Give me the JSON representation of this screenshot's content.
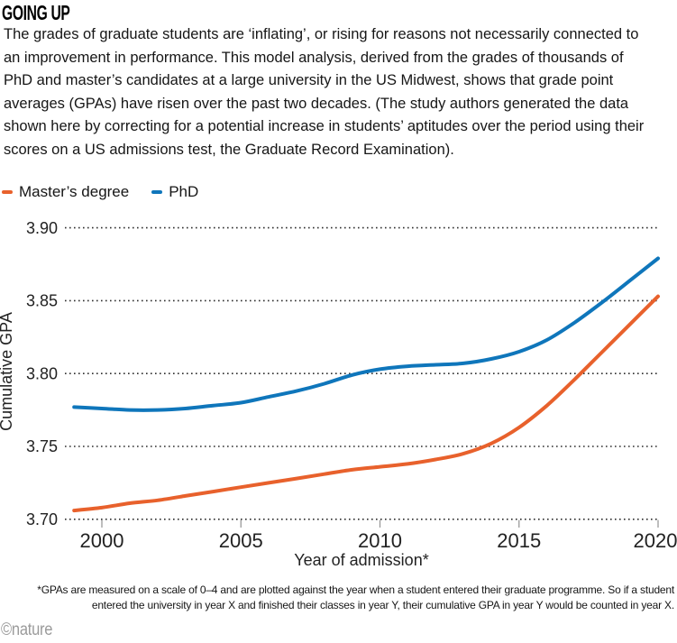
{
  "page": {
    "title": "GOING UP",
    "intro": "The grades of graduate students are ‘inflating’, or rising for reasons not necessarily connected to an improvement in performance. This model analysis, derived from the grades of thousands of PhD and master’s candidates at a large university in the US Midwest, shows that grade point averages (GPAs) have risen over the past two decades. (The study authors generated the data shown here by correcting for a potential increase in students’ aptitudes over the period using their scores on a US admissions test, the Graduate Record Examination).",
    "footnote": "*GPAs are measured on a scale of 0–4 and are plotted against the year when a student entered their graduate programme. So if a student entered the university in year X and finished their classes in year Y, their cumulative GPA in year Y would be counted in year X.",
    "credit": "©nature"
  },
  "legend": [
    {
      "label": "Master’s degree",
      "color": "#E8612C"
    },
    {
      "label": "PhD",
      "color": "#0F76BB"
    }
  ],
  "chart_data": {
    "type": "line",
    "title": "GOING UP",
    "xlabel": "Year of admission*",
    "ylabel": "Cumulative GPA",
    "x": [
      1999,
      2000,
      2001,
      2002,
      2003,
      2004,
      2005,
      2006,
      2007,
      2008,
      2009,
      2010,
      2011,
      2012,
      2013,
      2014,
      2015,
      2016,
      2017,
      2018,
      2019,
      2020
    ],
    "series": [
      {
        "name": "Master’s degree",
        "color": "#E8612C",
        "values": [
          3.706,
          3.708,
          3.711,
          3.713,
          3.716,
          3.719,
          3.722,
          3.725,
          3.728,
          3.731,
          3.734,
          3.736,
          3.738,
          3.741,
          3.745,
          3.752,
          3.763,
          3.778,
          3.796,
          3.815,
          3.834,
          3.853
        ]
      },
      {
        "name": "PhD",
        "color": "#0F76BB",
        "values": [
          3.777,
          3.776,
          3.775,
          3.775,
          3.776,
          3.778,
          3.78,
          3.784,
          3.788,
          3.793,
          3.799,
          3.803,
          3.805,
          3.806,
          3.807,
          3.81,
          3.815,
          3.823,
          3.835,
          3.849,
          3.864,
          3.879
        ]
      }
    ],
    "xticks": [
      2000,
      2005,
      2010,
      2015,
      2020
    ],
    "yticks": [
      "3.90",
      "3.85",
      "3.80",
      "3.75",
      "3.70"
    ],
    "xlim": [
      1998.7,
      2020
    ],
    "ylim": [
      3.7,
      3.9
    ],
    "grid": "dotted horizontal gridlines at each y tick",
    "legend_position": "top-left above plot"
  }
}
